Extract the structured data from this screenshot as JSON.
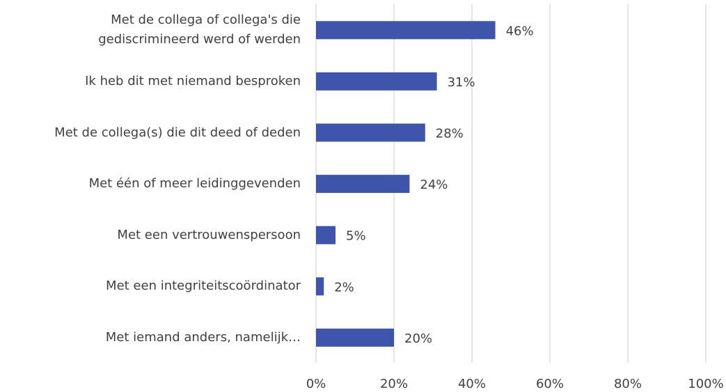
{
  "chart_data": {
    "type": "bar",
    "orientation": "horizontal",
    "categories": [
      "Met de collega of collega's die\ngediscrimineerd werd of werden",
      "Ik heb dit met niemand besproken",
      "Met de collega(s) die dit deed of deden",
      "Met één of meer leidinggevenden",
      "Met een vertrouwenspersoon",
      "Met een integriteitscoördinator",
      "Met iemand anders, namelijk…"
    ],
    "values": [
      46,
      31,
      28,
      24,
      5,
      2,
      20
    ],
    "value_labels": [
      "46%",
      "31%",
      "28%",
      "24%",
      "5%",
      "2%",
      "20%"
    ],
    "color": "#3e55ab",
    "xlim": [
      0,
      100
    ],
    "xticks": [
      {
        "value": 0,
        "label": "0%"
      },
      {
        "value": 20,
        "label": "20%"
      },
      {
        "value": 40,
        "label": "40%"
      },
      {
        "value": 60,
        "label": "60%"
      },
      {
        "value": 80,
        "label": "80%"
      },
      {
        "value": 100,
        "label": "100%"
      }
    ],
    "grid": true
  }
}
